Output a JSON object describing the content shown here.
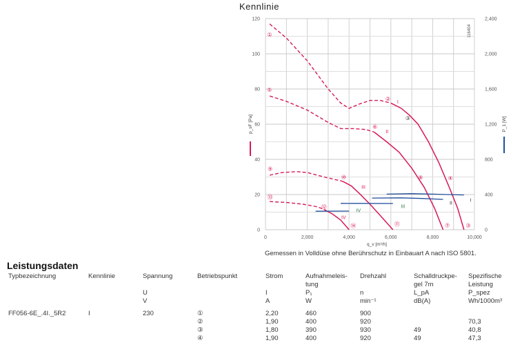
{
  "chart_data": {
    "type": "line",
    "title": "Kennlinie",
    "xlabel": "q_v [m³/h]",
    "ylabel": "p_sF [Pa]",
    "y2label": "P_1 [W]",
    "xlim": [
      0,
      10000
    ],
    "ylim": [
      0,
      120
    ],
    "y2lim": [
      0,
      2400
    ],
    "xticks": [
      "0",
      "2,000",
      "4,000",
      "6,000",
      "8,000",
      "10,000"
    ],
    "yticks": [
      "0",
      "20",
      "40",
      "60",
      "80",
      "100",
      "120"
    ],
    "y2ticks": [
      "0",
      "400",
      "800",
      "1,200",
      "1,600",
      "2,000",
      "2,400"
    ],
    "grid": true,
    "code": "116404",
    "colors": {
      "pressure": "#d6195a",
      "power": "#1f4e9c"
    },
    "pressure_series": [
      {
        "name": "I",
        "dashed": [
          [
            200,
            117
          ],
          [
            1000,
            109
          ],
          [
            2000,
            96
          ],
          [
            3000,
            80
          ],
          [
            3600,
            72
          ],
          [
            4000,
            69
          ],
          [
            4500,
            71.5
          ],
          [
            5000,
            73.5
          ],
          [
            5500,
            73.5
          ],
          [
            6000,
            72
          ]
        ],
        "solid": [
          [
            6000,
            72
          ],
          [
            6500,
            69
          ],
          [
            6900,
            65
          ],
          [
            7300,
            60
          ],
          [
            7800,
            50
          ],
          [
            8300,
            38
          ],
          [
            8800,
            24
          ],
          [
            9200,
            12
          ],
          [
            9500,
            0
          ]
        ],
        "label_at": [
          6300,
          73
        ]
      },
      {
        "name": "II",
        "dashed": [
          [
            200,
            76
          ],
          [
            1000,
            73
          ],
          [
            2000,
            68
          ],
          [
            3000,
            61
          ],
          [
            3600,
            57.5
          ],
          [
            4200,
            57.5
          ],
          [
            4800,
            57
          ],
          [
            5200,
            55.5
          ]
        ],
        "solid": [
          [
            5200,
            55.5
          ],
          [
            5800,
            50
          ],
          [
            6400,
            44
          ],
          [
            7000,
            35
          ],
          [
            7600,
            24
          ],
          [
            8100,
            12
          ],
          [
            8500,
            0
          ]
        ],
        "label_at": [
          5750,
          56
        ]
      },
      {
        "name": "III",
        "dashed": [
          [
            200,
            31
          ],
          [
            800,
            32.5
          ],
          [
            1500,
            33
          ],
          [
            2000,
            32.5
          ],
          [
            2800,
            30
          ],
          [
            3700,
            27.5
          ]
        ],
        "solid": [
          [
            3700,
            27.5
          ],
          [
            4100,
            25
          ],
          [
            4500,
            20.5
          ],
          [
            5000,
            14.5
          ],
          [
            5500,
            8
          ],
          [
            6100,
            0
          ]
        ],
        "label_at": [
          4590,
          24.6
        ]
      },
      {
        "name": "IV",
        "dashed": [
          [
            200,
            16
          ],
          [
            1000,
            15.5
          ],
          [
            1800,
            14.5
          ],
          [
            2500,
            13
          ],
          [
            2800,
            11.5
          ]
        ],
        "solid": [
          [
            2800,
            11.5
          ],
          [
            3200,
            9
          ],
          [
            3600,
            5.5
          ],
          [
            4000,
            0
          ]
        ],
        "label_at": [
          3630,
          7.2
        ]
      }
    ],
    "power_series": [
      {
        "name": "I",
        "points": [
          [
            5800,
            405
          ],
          [
            7000,
            410
          ],
          [
            8000,
            405
          ],
          [
            9500,
            395
          ]
        ],
        "label_at": [
          9780,
          17
        ]
      },
      {
        "name": "II",
        "points": [
          [
            5100,
            360
          ],
          [
            6500,
            362
          ],
          [
            7500,
            355
          ],
          [
            8500,
            345
          ]
        ],
        "label_at": [
          8810,
          15.4
        ]
      },
      {
        "name": "III",
        "points": [
          [
            3600,
            300
          ],
          [
            6100,
            298
          ]
        ],
        "label_at": [
          6480,
          13.5
        ]
      },
      {
        "name": "IV",
        "points": [
          [
            2400,
            210
          ],
          [
            4000,
            212
          ]
        ],
        "label_at": [
          4340,
          11.2
        ]
      }
    ],
    "operating_points": [
      {
        "label": "①",
        "at": [
          200,
          111
        ]
      },
      {
        "label": "②",
        "at": [
          5860,
          74.6
        ]
      },
      {
        "label": "③",
        "at": [
          6810,
          63.5
        ],
        "dark": true
      },
      {
        "label": "③",
        "at": [
          9700,
          2.6
        ]
      },
      {
        "label": "④",
        "at": [
          8850,
          29.5
        ]
      },
      {
        "label": "⑤",
        "at": [
          190,
          79.6
        ]
      },
      {
        "label": "⑥",
        "at": [
          5240,
          58.6
        ]
      },
      {
        "label": "⑦",
        "at": [
          8700,
          2.6
        ]
      },
      {
        "label": "⑧",
        "at": [
          7420,
          29.8
        ]
      },
      {
        "label": "⑨",
        "at": [
          220,
          34.8
        ]
      },
      {
        "label": "⑩",
        "at": [
          3740,
          30
        ]
      },
      {
        "label": "⑪",
        "at": [
          6300,
          3.4
        ]
      },
      {
        "label": "⑫",
        "at": [
          2800,
          13
        ]
      },
      {
        "label": "⑬",
        "at": [
          220,
          18.7
        ]
      },
      {
        "label": "⑭",
        "at": [
          4200,
          2.4
        ]
      }
    ],
    "caption": "Gemessen in Volldüse ohne Berührschutz in Einbauart A nach ISO 5801."
  },
  "table": {
    "title": "Leistungsdaten",
    "header": [
      [
        "Typbezeichnung"
      ],
      [
        "Kennlinie"
      ],
      [
        "Spannung",
        "",
        "U",
        "V"
      ],
      [
        "Betriebspunkt"
      ],
      [
        "Strom",
        "",
        "I",
        "A"
      ],
      [
        "Aufnahmeleis-",
        "tung",
        "P₁",
        "W"
      ],
      [
        "Drehzahl",
        "",
        "n",
        "min⁻¹"
      ],
      [
        "Schalldruckpe-",
        "gel 7m",
        "L_pA",
        "dB(A)"
      ],
      [
        "Spezifische",
        "Leistung",
        "P_spez",
        "Wh/1000m³"
      ]
    ],
    "rows": [
      [
        "FF056-6E_.4I._5R2",
        "I",
        "230",
        "①",
        "2,20",
        "460",
        "900",
        "",
        ""
      ],
      [
        "",
        "",
        "",
        "②",
        "1,90",
        "400",
        "920",
        "",
        "70,3"
      ],
      [
        "",
        "",
        "",
        "③",
        "1,80",
        "390",
        "930",
        "49",
        "40,8"
      ],
      [
        "",
        "",
        "",
        "④",
        "1,90",
        "400",
        "920",
        "49",
        "47,3"
      ]
    ]
  }
}
